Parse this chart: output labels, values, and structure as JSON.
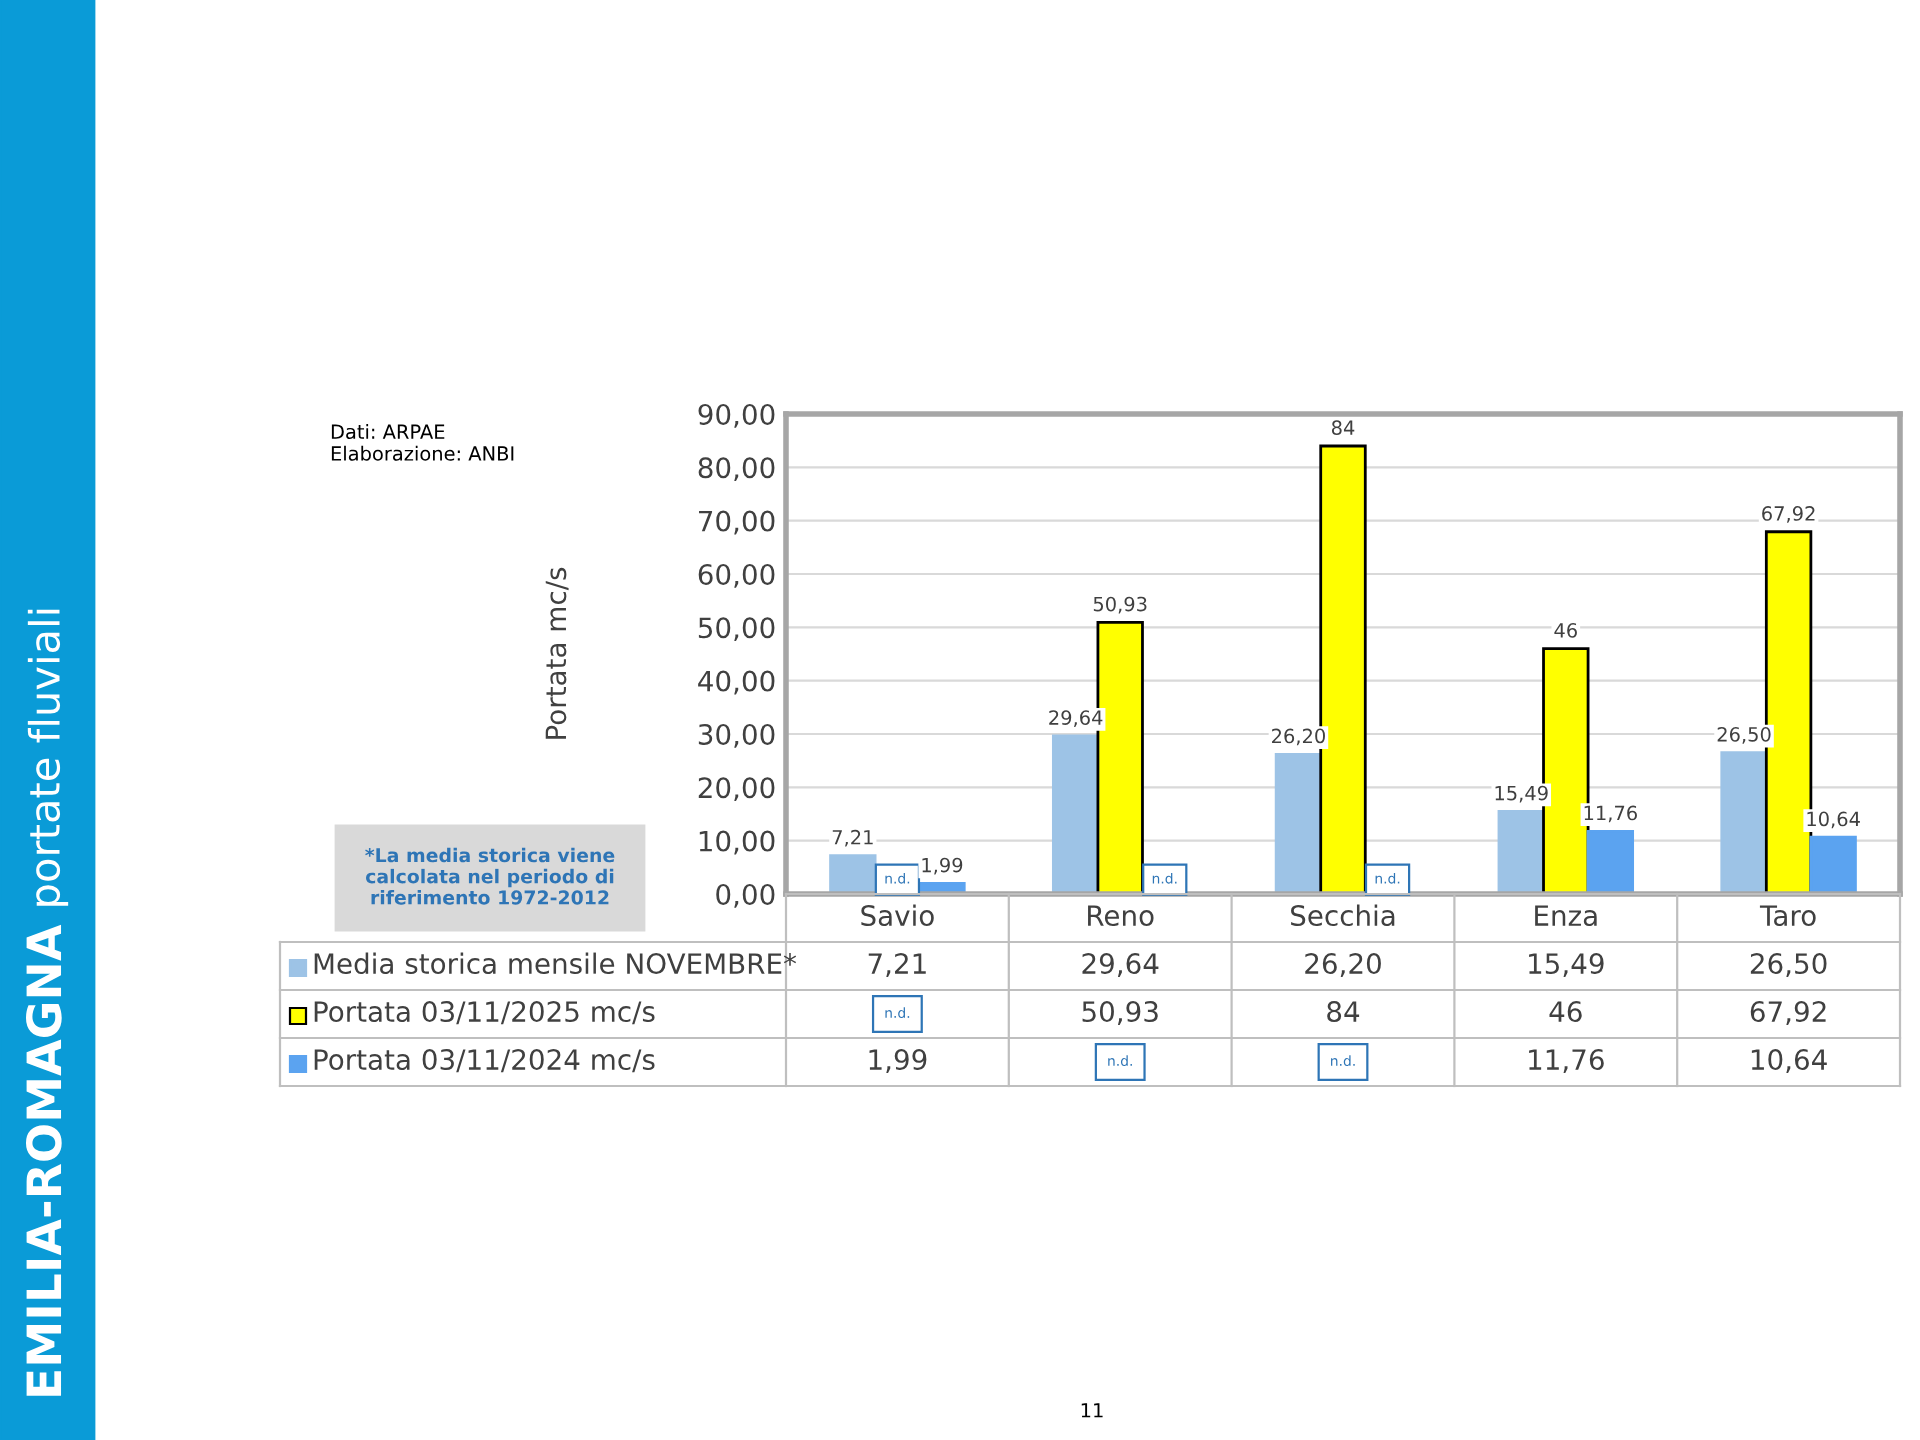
{
  "chart_data": {
    "type": "bar",
    "title": "EMILIA-ROMAGNA",
    "subtitle": "portate fluviali",
    "ylabel": "Portata mc/s",
    "categories": [
      "Savio",
      "Reno",
      "Secchia",
      "Enza",
      "Taro"
    ],
    "series": [
      {
        "name": "Media storica mensile NOVEMBRE*",
        "color": "#9dc3e6",
        "values": [
          7.21,
          29.64,
          26.2,
          15.49,
          26.5
        ],
        "value_labels": [
          "7,21",
          "29,64",
          "26,20",
          "15,49",
          "26,50"
        ]
      },
      {
        "name": "Portata 03/11/2025 mc/s",
        "color": "#ffff00",
        "values": [
          null,
          50.93,
          84,
          46,
          67.92
        ],
        "value_labels": [
          "n.d.",
          "50,93",
          "84",
          "46",
          "67,92"
        ]
      },
      {
        "name": "Portata 03/11/2024 mc/s",
        "color": "#5ba3f0",
        "values": [
          1.99,
          null,
          null,
          11.76,
          10.64
        ],
        "value_labels": [
          "1,99",
          "n.d.",
          "n.d.",
          "11,76",
          "10,64"
        ]
      }
    ],
    "ylim": [
      0,
      90
    ],
    "yticks": [
      {
        "value": 0,
        "label": "0,00"
      },
      {
        "value": 10,
        "label": "10,00"
      },
      {
        "value": 20,
        "label": "20,00"
      },
      {
        "value": 30,
        "label": "30,00"
      },
      {
        "value": 40,
        "label": "40,00"
      },
      {
        "value": 50,
        "label": "50,00"
      },
      {
        "value": 60,
        "label": "60,00"
      },
      {
        "value": 70,
        "label": "70,00"
      },
      {
        "value": 80,
        "label": "80,00"
      },
      {
        "value": 90,
        "label": "90,00"
      }
    ],
    "grid": "y",
    "legend": "bottom",
    "annotations": [
      "Dati: ARPAE\nElaborazione: ANBI",
      "*La media storica viene calcolata nel periodo di riferimento 1972-2012",
      "11"
    ]
  }
}
